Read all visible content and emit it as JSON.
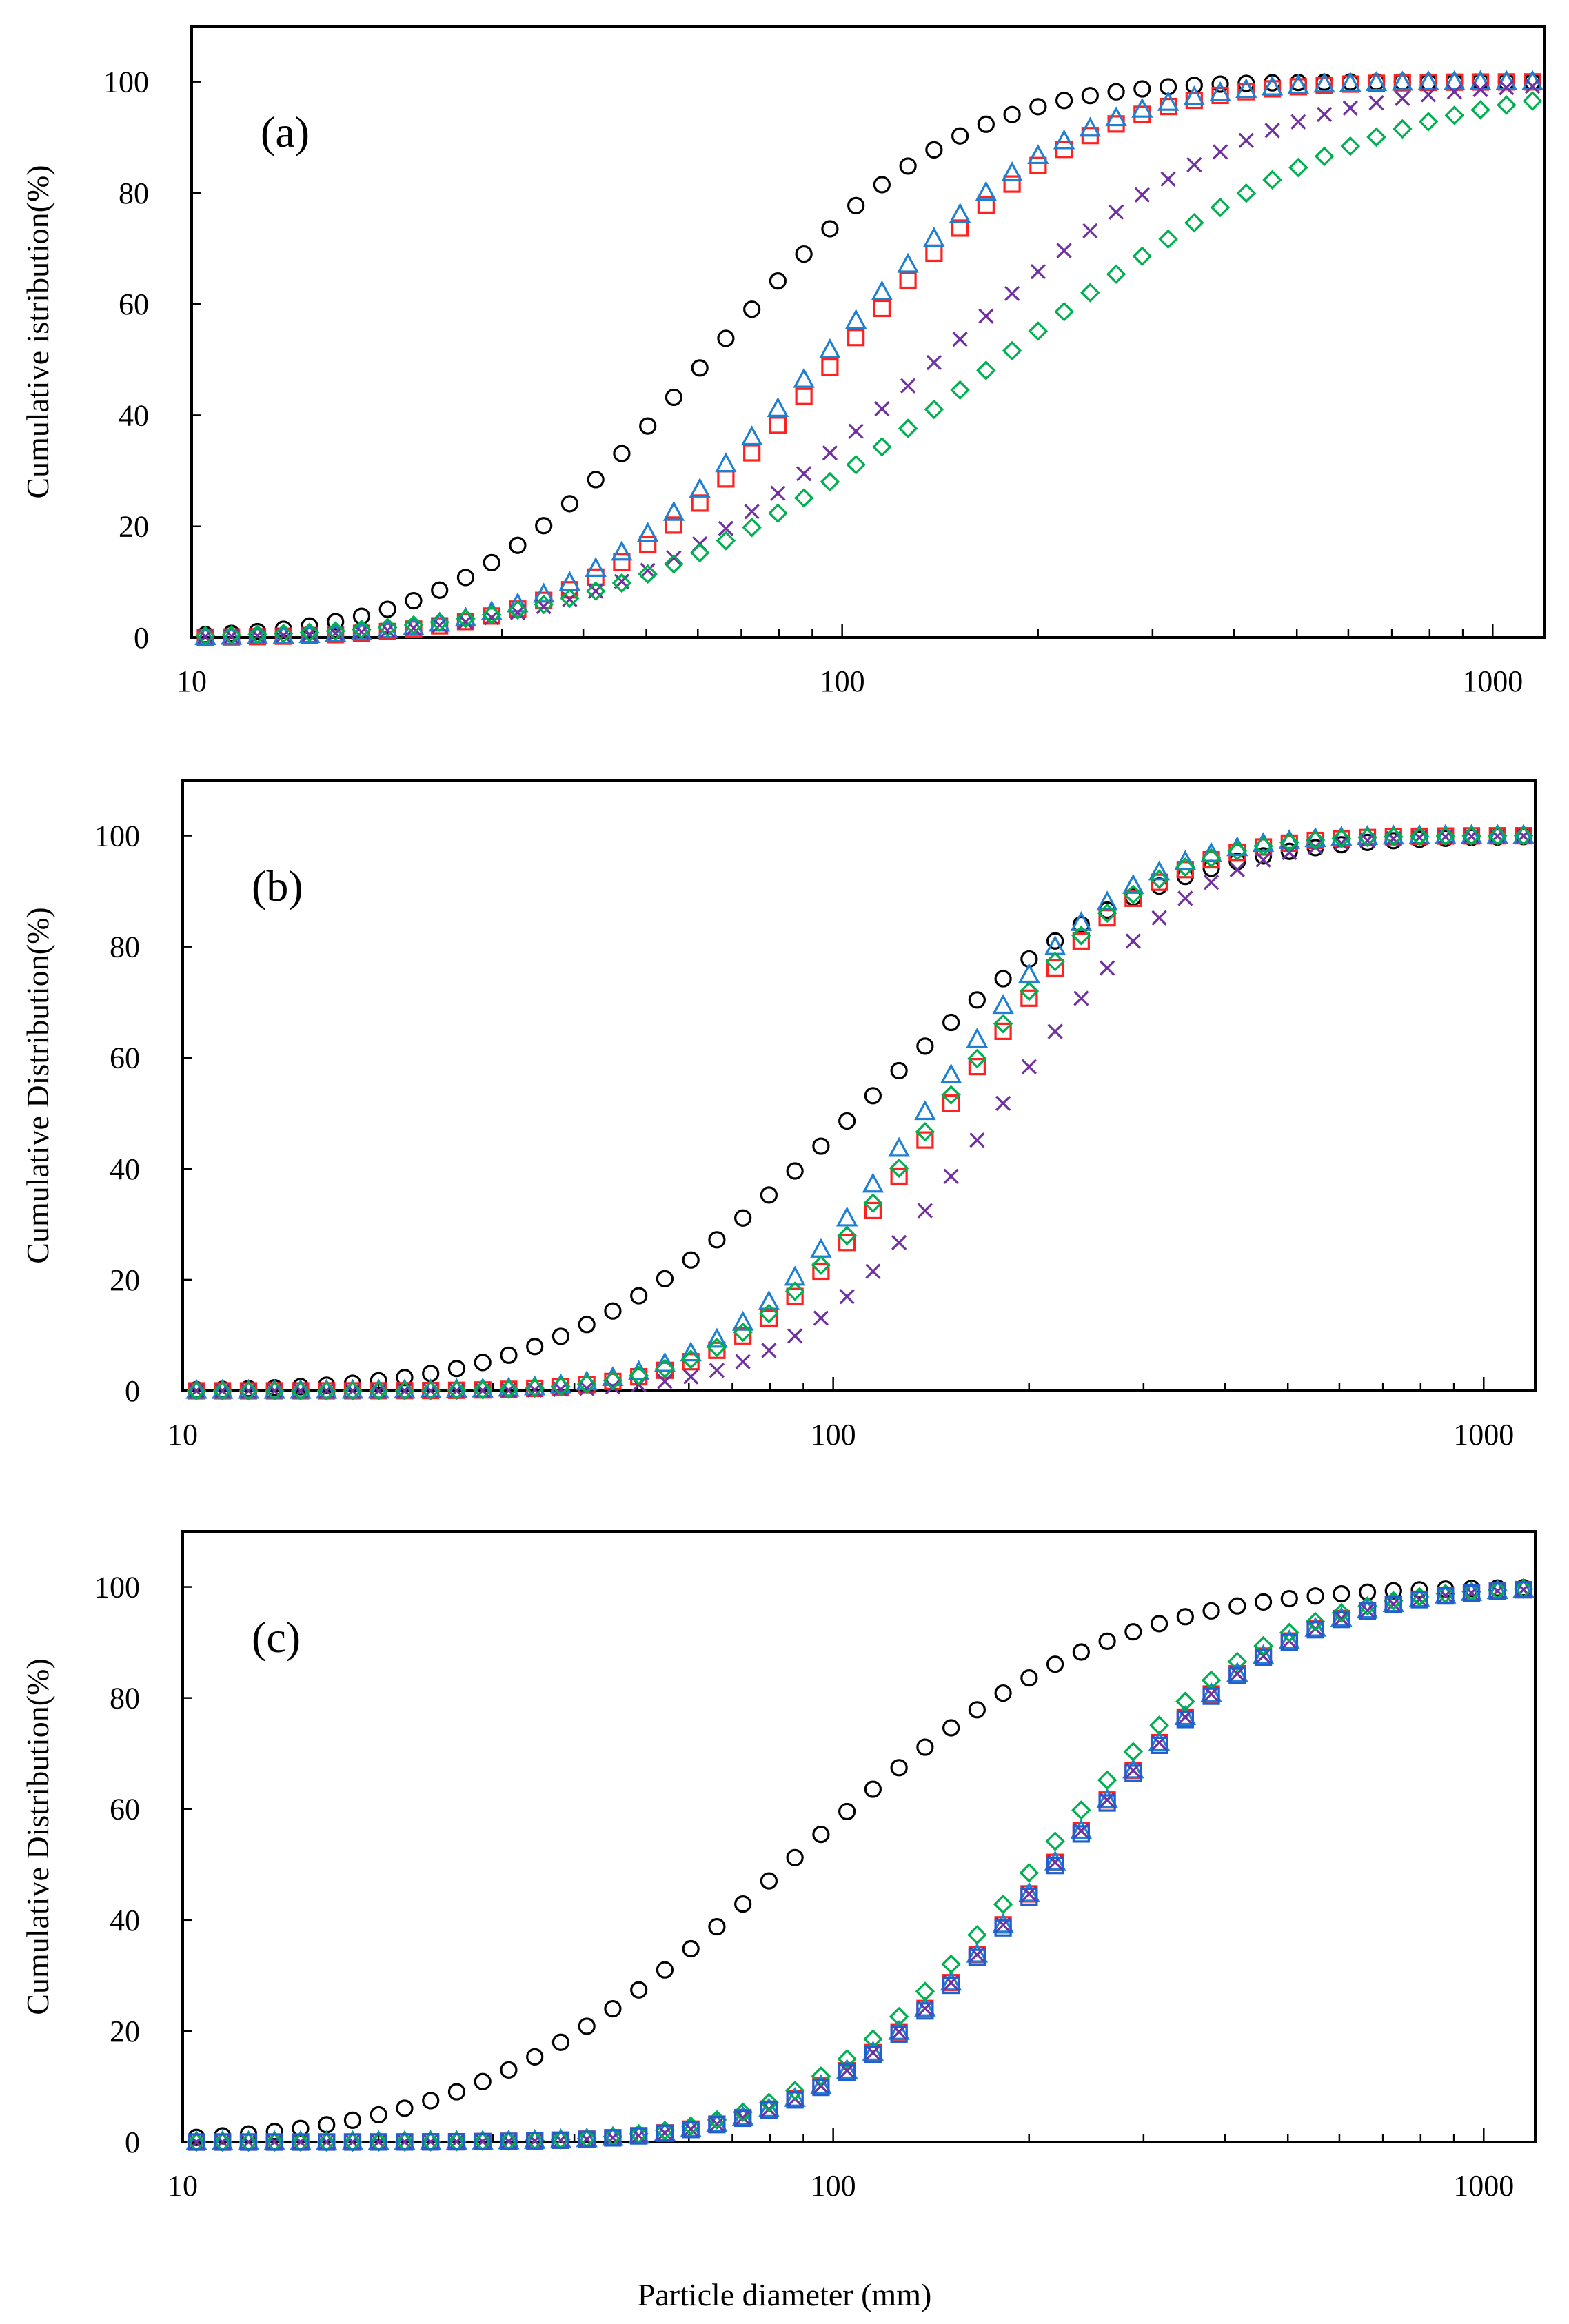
{
  "figure": {
    "xlabel": "Particle diameter (mm)"
  },
  "chart_data": [
    {
      "type": "scatter",
      "panel_label": "(a)",
      "ylabel": "Cumulative  istribution(%)",
      "xscale": "log",
      "xlim": [
        10,
        1200
      ],
      "ylim": [
        0,
        110
      ],
      "xticks": [
        "10",
        "100",
        "1000"
      ],
      "yticks": [
        "0",
        "20",
        "40",
        "60",
        "80",
        "100"
      ],
      "grid": false,
      "series": [
        {
          "name": "circle",
          "marker": "circle",
          "color": "#000000",
          "d50": 62,
          "sigma": 0.3
        },
        {
          "name": "square",
          "marker": "square",
          "color": "#ff2020",
          "d50": 98,
          "sigma": 0.3
        },
        {
          "name": "triangle",
          "marker": "triangle",
          "color": "#1f7fd0",
          "d50": 93,
          "sigma": 0.3
        },
        {
          "name": "cross",
          "marker": "x",
          "color": "#7030a0",
          "d50": 140,
          "sigma": 0.38
        },
        {
          "name": "diamond",
          "marker": "diamond",
          "color": "#00b050",
          "d50": 175,
          "sigma": 0.45
        }
      ]
    },
    {
      "type": "scatter",
      "panel_label": "(b)",
      "ylabel": "Cumulative Distribution(%)",
      "xscale": "log",
      "xlim": [
        10,
        1200
      ],
      "ylim": [
        0,
        110
      ],
      "xticks": [
        "10",
        "100",
        "1000"
      ],
      "yticks": [
        "0",
        "20",
        "40",
        "60",
        "80",
        "100"
      ],
      "grid": false,
      "series": [
        {
          "name": "circle",
          "marker": "circle",
          "color": "#000000",
          "d50": 108,
          "sigma": 0.35
        },
        {
          "name": "square",
          "marker": "square",
          "color": "#ff2020",
          "d50": 148,
          "sigma": 0.24
        },
        {
          "name": "triangle",
          "marker": "triangle",
          "color": "#1f7fd0",
          "d50": 138,
          "sigma": 0.24
        },
        {
          "name": "cross",
          "marker": "x",
          "color": "#7030a0",
          "d50": 178,
          "sigma": 0.24
        },
        {
          "name": "diamond",
          "marker": "diamond",
          "color": "#00b050",
          "d50": 145,
          "sigma": 0.24
        }
      ]
    },
    {
      "type": "scatter",
      "panel_label": "(c)",
      "ylabel": "Cumulative Distribution(%)",
      "xscale": "log",
      "xlim": [
        10,
        1200
      ],
      "ylim": [
        0,
        110
      ],
      "xticks": [
        "10",
        "100",
        "1000"
      ],
      "yticks": [
        "0",
        "20",
        "40",
        "60",
        "80",
        "100"
      ],
      "grid": false,
      "series": [
        {
          "name": "circle",
          "marker": "circle",
          "color": "#000000",
          "d50": 85,
          "sigma": 0.38
        },
        {
          "name": "square",
          "marker": "square",
          "color": "#ff2020",
          "d50": 218,
          "sigma": 0.28
        },
        {
          "name": "triangle",
          "marker": "triangle",
          "color": "#1f7fd0",
          "d50": 218,
          "sigma": 0.28
        },
        {
          "name": "cross",
          "marker": "x",
          "color": "#7030a0",
          "d50": 218,
          "sigma": 0.28
        },
        {
          "name": "diamond",
          "marker": "diamond",
          "color": "#00b050",
          "d50": 205,
          "sigma": 0.28
        },
        {
          "name": "square-blue",
          "marker": "square",
          "color": "#1f5fd0",
          "d50": 220,
          "sigma": 0.28
        }
      ]
    }
  ]
}
